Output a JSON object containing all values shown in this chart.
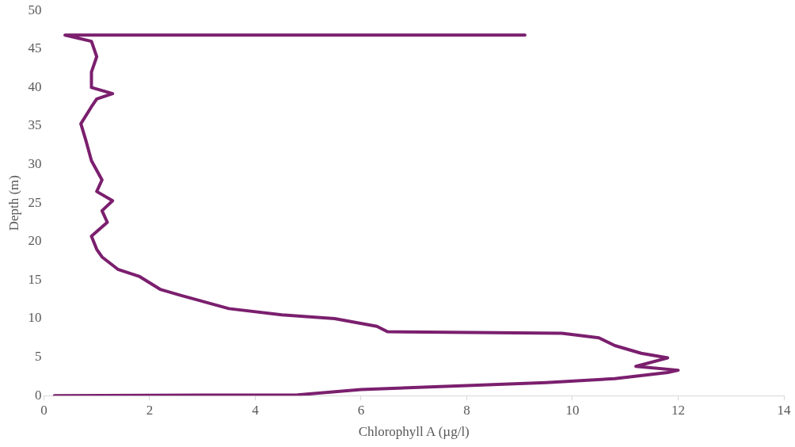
{
  "chart_data": {
    "type": "line",
    "xlabel": "Chlorophyll A (µg/l)",
    "ylabel": "Depth (m)",
    "xlim": [
      0,
      14
    ],
    "xticks": [
      0,
      2,
      4,
      6,
      8,
      10,
      12,
      14
    ],
    "ylim": [
      0,
      50
    ],
    "yticks": [
      0,
      5,
      10,
      15,
      20,
      25,
      30,
      35,
      40,
      45,
      50
    ],
    "grid": false,
    "legend": false,
    "marker": "none",
    "line_style": "solid",
    "series": [
      {
        "color": "#7b1f6e",
        "x": [
          0.2,
          4.8,
          6.0,
          8.0,
          9.5,
          10.8,
          11.8,
          12.0,
          11.2,
          11.8,
          11.3,
          10.8,
          10.5,
          9.8,
          6.5,
          6.3,
          5.5,
          4.5,
          3.5,
          2.6,
          2.2,
          1.8,
          1.4,
          1.1,
          1.0,
          0.9,
          1.2,
          1.1,
          1.3,
          1.0,
          1.1,
          0.9,
          0.8,
          0.7,
          0.9,
          1.0,
          1.3,
          0.9,
          0.9,
          1.0,
          0.9,
          0.4,
          9.1
        ],
        "values": [
          0,
          0.1,
          0.8,
          1.3,
          1.7,
          2.2,
          3.0,
          3.3,
          3.8,
          4.9,
          5.5,
          6.5,
          7.5,
          8.1,
          8.3,
          9.0,
          10.0,
          10.5,
          11.3,
          13.0,
          13.8,
          15.5,
          16.4,
          18.0,
          19.0,
          20.7,
          22.5,
          24.0,
          25.3,
          26.5,
          28.0,
          30.5,
          33.0,
          35.3,
          37.5,
          38.5,
          39.2,
          40.0,
          42.0,
          44.0,
          46.0,
          46.8,
          46.8
        ]
      }
    ]
  }
}
